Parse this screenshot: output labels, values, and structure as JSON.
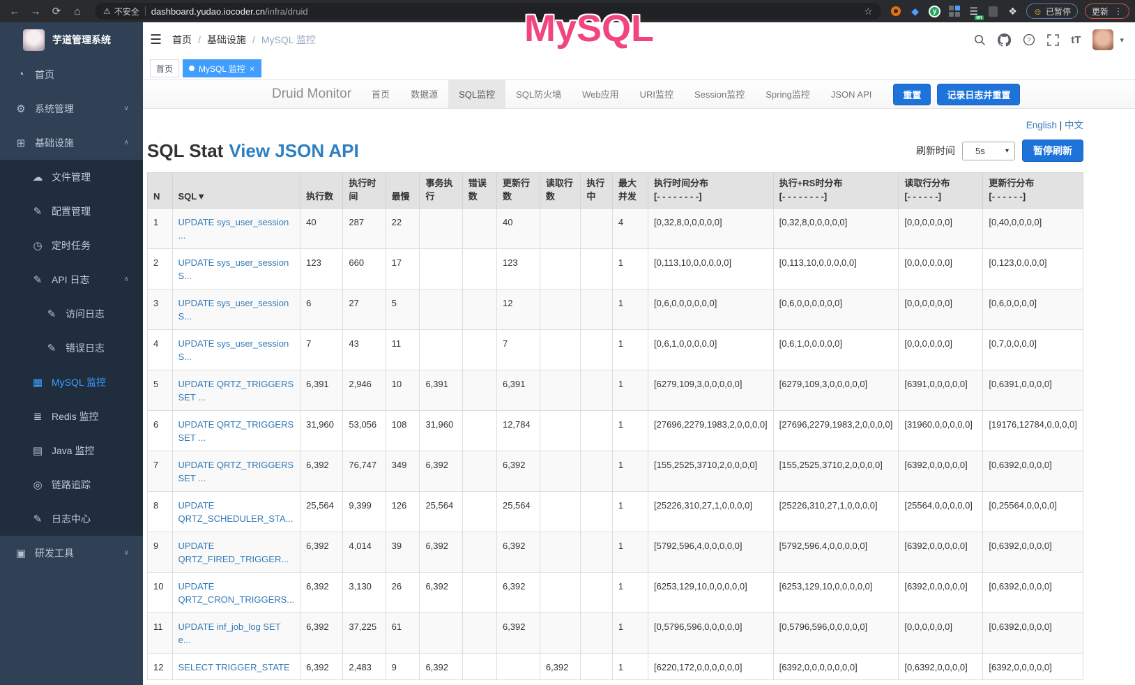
{
  "browser": {
    "security_label": "不安全",
    "url_host": "dashboard.yudao.iocoder.cn",
    "url_path": "/infra/druid",
    "ext_badge": "on",
    "paused_label": "已暂停",
    "update_label": "更新"
  },
  "icons": {
    "back": "←",
    "forward": "→",
    "reload": "⟳",
    "home": "⌂",
    "warn": "⚠",
    "star": "☆",
    "dots": "⋮",
    "face": "☺",
    "gem": "◆",
    "puzzle": "❖",
    "list": "☰",
    "menu": "☰",
    "caret": "▾",
    "dot_char": "●",
    "close": "×",
    "chev_down": "∨",
    "chev_up": "∧",
    "green_y": "y",
    "tt": "tT"
  },
  "annotation": {
    "text": "MySQL",
    "color": "#f2457e"
  },
  "sidebar": {
    "title": "芋道管理系统",
    "items": [
      {
        "label": "首页",
        "icon": "dashboard-icon",
        "glyph": "◔",
        "level": 1
      },
      {
        "label": "系统管理",
        "icon": "gear-icon",
        "glyph": "⚙",
        "level": 1,
        "chevron": "down"
      },
      {
        "label": "基础设施",
        "icon": "infra-icon",
        "glyph": "⊞",
        "level": 1,
        "chevron": "up"
      },
      {
        "label": "文件管理",
        "icon": "file-icon",
        "glyph": "☁",
        "level": 2
      },
      {
        "label": "配置管理",
        "icon": "config-icon",
        "glyph": "✎",
        "level": 2
      },
      {
        "label": "定时任务",
        "icon": "schedule-icon",
        "glyph": "◷",
        "level": 2
      },
      {
        "label": "API 日志",
        "icon": "api-log-icon",
        "glyph": "✎",
        "level": 2,
        "chevron": "up"
      },
      {
        "label": "访问日志",
        "icon": "access-log-icon",
        "glyph": "✎",
        "level": 3
      },
      {
        "label": "错误日志",
        "icon": "error-log-icon",
        "glyph": "✎",
        "level": 3
      },
      {
        "label": "MySQL 监控",
        "icon": "mysql-icon",
        "glyph": "▦",
        "level": 2,
        "active": true
      },
      {
        "label": "Redis 监控",
        "icon": "redis-icon",
        "glyph": "≣",
        "level": 2
      },
      {
        "label": "Java 监控",
        "icon": "java-icon",
        "glyph": "▤",
        "level": 2
      },
      {
        "label": "链路追踪",
        "icon": "trace-icon",
        "glyph": "◎",
        "level": 2
      },
      {
        "label": "日志中心",
        "icon": "log-center-icon",
        "glyph": "✎",
        "level": 2
      },
      {
        "label": "研发工具",
        "icon": "tools-icon",
        "glyph": "▣",
        "level": 1,
        "chevron": "down"
      }
    ]
  },
  "header": {
    "breadcrumb": [
      "首页",
      "基础设施",
      "MySQL 监控"
    ]
  },
  "tags": [
    {
      "label": "首页",
      "active": false
    },
    {
      "label": "MySQL 监控",
      "active": true
    }
  ],
  "druid": {
    "brand": "Druid Monitor",
    "nav": [
      "首页",
      "数据源",
      "SQL监控",
      "SQL防火墙",
      "Web应用",
      "URI监控",
      "Session监控",
      "Spring监控",
      "JSON API"
    ],
    "active_nav": "SQL监控",
    "reset_button": "重置",
    "log_reset_button": "记录日志并重置",
    "lang_en": "English",
    "lang_zh": "中文",
    "title": "SQL Stat",
    "title_link": "View JSON API",
    "refresh_label": "刷新时间",
    "refresh_value": "5s",
    "pause_button": "暂停刷新",
    "theme_blue": "#1d73d9"
  },
  "stats": {
    "columns": [
      {
        "label": "N"
      },
      {
        "label": "SQL▼"
      },
      {
        "label": "执行数"
      },
      {
        "label": "执行时间"
      },
      {
        "label": "最慢"
      },
      {
        "label": "事务执行"
      },
      {
        "label": "错误数"
      },
      {
        "label": "更新行数"
      },
      {
        "label": "读取行数"
      },
      {
        "label": "执行中"
      },
      {
        "label": "最大并发"
      },
      {
        "label": "执行时间分布",
        "sub": "[- - - - - - - -]"
      },
      {
        "label": "执行+RS时分布",
        "sub": "[- - - - - - - -]"
      },
      {
        "label": "读取行分布",
        "sub": "[- - - - - -]"
      },
      {
        "label": "更新行分布",
        "sub": "[- - - - - -]"
      }
    ],
    "rows": [
      [
        "1",
        "UPDATE sys_user_session ...",
        "40",
        "287",
        "22",
        "",
        "",
        "40",
        "",
        "",
        "4",
        "[0,32,8,0,0,0,0,0]",
        "[0,32,8,0,0,0,0,0]",
        "[0,0,0,0,0,0]",
        "[0,40,0,0,0,0]"
      ],
      [
        "2",
        "UPDATE sys_user_session S...",
        "123",
        "660",
        "17",
        "",
        "",
        "123",
        "",
        "",
        "1",
        "[0,113,10,0,0,0,0,0]",
        "[0,113,10,0,0,0,0,0]",
        "[0,0,0,0,0,0]",
        "[0,123,0,0,0,0]"
      ],
      [
        "3",
        "UPDATE sys_user_session S...",
        "6",
        "27",
        "5",
        "",
        "",
        "12",
        "",
        "",
        "1",
        "[0,6,0,0,0,0,0,0]",
        "[0,6,0,0,0,0,0,0]",
        "[0,0,0,0,0,0]",
        "[0,6,0,0,0,0]"
      ],
      [
        "4",
        "UPDATE sys_user_session S...",
        "7",
        "43",
        "11",
        "",
        "",
        "7",
        "",
        "",
        "1",
        "[0,6,1,0,0,0,0,0]",
        "[0,6,1,0,0,0,0,0]",
        "[0,0,0,0,0,0]",
        "[0,7,0,0,0,0]"
      ],
      [
        "5",
        "UPDATE QRTZ_TRIGGERS SET ...",
        "6,391",
        "2,946",
        "10",
        "6,391",
        "",
        "6,391",
        "",
        "",
        "1",
        "[6279,109,3,0,0,0,0,0]",
        "[6279,109,3,0,0,0,0,0]",
        "[6391,0,0,0,0,0]",
        "[0,6391,0,0,0,0]"
      ],
      [
        "6",
        "UPDATE QRTZ_TRIGGERS SET ...",
        "31,960",
        "53,056",
        "108",
        "31,960",
        "",
        "12,784",
        "",
        "",
        "1",
        "[27696,2279,1983,2,0,0,0,0]",
        "[27696,2279,1983,2,0,0,0,0]",
        "[31960,0,0,0,0,0]",
        "[19176,12784,0,0,0,0]"
      ],
      [
        "7",
        "UPDATE QRTZ_TRIGGERS SET ...",
        "6,392",
        "76,747",
        "349",
        "6,392",
        "",
        "6,392",
        "",
        "",
        "1",
        "[155,2525,3710,2,0,0,0,0]",
        "[155,2525,3710,2,0,0,0,0]",
        "[6392,0,0,0,0,0]",
        "[0,6392,0,0,0,0]"
      ],
      [
        "8",
        "UPDATE QRTZ_SCHEDULER_STA...",
        "25,564",
        "9,399",
        "126",
        "25,564",
        "",
        "25,564",
        "",
        "",
        "1",
        "[25226,310,27,1,0,0,0,0]",
        "[25226,310,27,1,0,0,0,0]",
        "[25564,0,0,0,0,0]",
        "[0,25564,0,0,0,0]"
      ],
      [
        "9",
        "UPDATE QRTZ_FIRED_TRIGGER...",
        "6,392",
        "4,014",
        "39",
        "6,392",
        "",
        "6,392",
        "",
        "",
        "1",
        "[5792,596,4,0,0,0,0,0]",
        "[5792,596,4,0,0,0,0,0]",
        "[6392,0,0,0,0,0]",
        "[0,6392,0,0,0,0]"
      ],
      [
        "10",
        "UPDATE QRTZ_CRON_TRIGGERS...",
        "6,392",
        "3,130",
        "26",
        "6,392",
        "",
        "6,392",
        "",
        "",
        "1",
        "[6253,129,10,0,0,0,0,0]",
        "[6253,129,10,0,0,0,0,0]",
        "[6392,0,0,0,0,0]",
        "[0,6392,0,0,0,0]"
      ],
      [
        "11",
        "UPDATE inf_job_log SET e...",
        "6,392",
        "37,225",
        "61",
        "",
        "",
        "6,392",
        "",
        "",
        "1",
        "[0,5796,596,0,0,0,0,0]",
        "[0,5796,596,0,0,0,0,0]",
        "[0,0,0,0,0,0]",
        "[0,6392,0,0,0,0]"
      ],
      [
        "12",
        "SELECT TRIGGER_STATE",
        "6,392",
        "2,483",
        "9",
        "6,392",
        "",
        "",
        "6,392",
        "",
        "1",
        "[6220,172,0,0,0,0,0,0]",
        "[6392,0,0,0,0,0,0,0]",
        "[0,6392,0,0,0,0]",
        "[6392,0,0,0,0,0]"
      ]
    ]
  }
}
